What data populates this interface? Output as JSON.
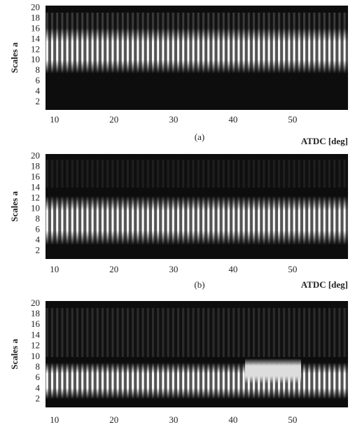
{
  "chart_data": [
    {
      "type": "heatmap",
      "ylabel": "Scales a",
      "caption": "(a)",
      "xlabel": "ATDC  [deg]",
      "xlim": [
        8.5,
        59.3
      ],
      "xticks": [
        10,
        20,
        30,
        40,
        50
      ],
      "ylim": [
        0.5,
        20.5
      ],
      "yticks": [
        2,
        4,
        6,
        8,
        10,
        12,
        14,
        16,
        18,
        20
      ]
    },
    {
      "type": "heatmap",
      "ylabel": "Scales a",
      "caption": "(b)",
      "xlabel": "ATDC  [deg]",
      "xlim": [
        8.5,
        59.3
      ],
      "xticks": [
        10,
        20,
        30,
        40,
        50
      ],
      "ylim": [
        0.5,
        20.5
      ],
      "yticks": [
        2,
        4,
        6,
        8,
        10,
        12,
        14,
        16,
        18,
        20
      ]
    },
    {
      "type": "heatmap",
      "ylabel": "Scales a",
      "xlim": [
        8.5,
        59.3
      ],
      "xticks": [
        10,
        20,
        30,
        40,
        50
      ],
      "ylim": [
        0.5,
        20.5
      ],
      "yticks": [
        2,
        4,
        6,
        8,
        10,
        12,
        14,
        16,
        18,
        20
      ]
    }
  ]
}
